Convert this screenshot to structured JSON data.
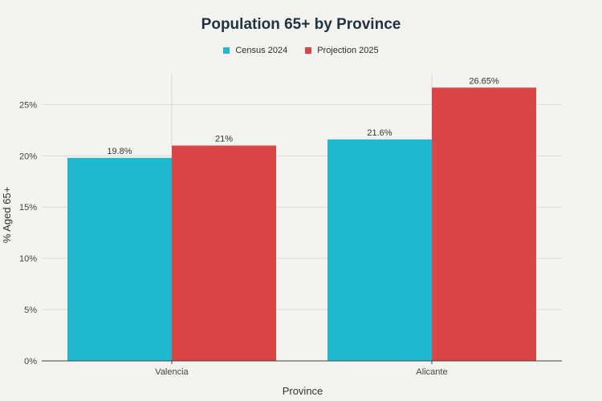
{
  "chart_data": {
    "type": "bar",
    "title": "Population 65+ by Province",
    "xlabel": "Province",
    "ylabel": "% Aged 65+",
    "categories": [
      "Valencia",
      "Alicante"
    ],
    "series": [
      {
        "name": "Census 2024",
        "color": "#1fb8cd",
        "values": [
          19.8,
          21.6
        ],
        "labels": [
          "19.8%",
          "21.6%"
        ]
      },
      {
        "name": "Projection 2025",
        "color": "#db4545",
        "values": [
          21,
          26.65
        ],
        "labels": [
          "21%",
          "26.65%"
        ]
      }
    ],
    "ylim": [
      0,
      28
    ],
    "yticks": [
      0,
      5,
      10,
      15,
      20,
      25
    ],
    "ytick_labels": [
      "0%",
      "5%",
      "10%",
      "15%",
      "20%",
      "25%"
    ],
    "grid": true,
    "legend_position": "top-center"
  }
}
